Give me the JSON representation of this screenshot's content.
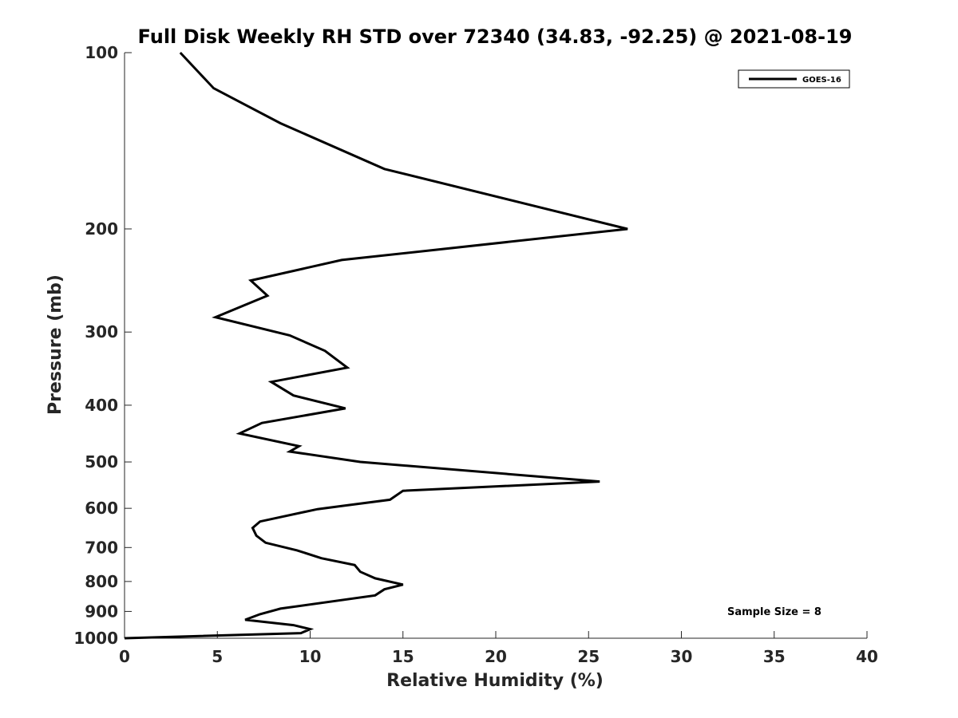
{
  "chart_data": {
    "type": "line",
    "title": "Full Disk Weekly RH STD over 72340 (34.83, -92.25) @ 2021-08-19",
    "xlabel": "Relative Humidity (%)",
    "ylabel": "Pressure (mb)",
    "xlim": [
      0,
      40
    ],
    "ylim": [
      100,
      1000
    ],
    "y_scale": "log",
    "y_reversed": true,
    "x_ticks": [
      "0",
      "5",
      "10",
      "15",
      "20",
      "25",
      "30",
      "35",
      "40"
    ],
    "y_ticks": [
      "100",
      "200",
      "300",
      "400",
      "500",
      "600",
      "700",
      "800",
      "900",
      "1000"
    ],
    "legend": {
      "position": "top-right",
      "entries": [
        "GOES-16"
      ]
    },
    "annotation": "Sample Size = 8",
    "series": [
      {
        "name": "GOES-16",
        "color": "#000000",
        "x": [
          3.0,
          4.8,
          8.4,
          14.0,
          27.1,
          11.7,
          6.8,
          7.7,
          4.9,
          8.9,
          10.8,
          12.0,
          7.9,
          9.1,
          11.9,
          7.4,
          6.2,
          9.4,
          8.9,
          12.7,
          25.6,
          15.0,
          14.3,
          10.4,
          7.3,
          6.9,
          7.1,
          7.6,
          9.3,
          10.6,
          12.4,
          12.7,
          13.5,
          15.0,
          14.0,
          13.5,
          8.4,
          7.3,
          6.5,
          9.1,
          10.0,
          9.5,
          0.0
        ],
        "y": [
          100,
          115,
          132,
          158,
          200,
          226,
          245,
          260,
          283,
          304,
          323,
          345,
          365,
          385,
          405,
          429,
          447,
          470,
          480,
          500,
          540,
          560,
          580,
          602,
          632,
          648,
          668,
          687,
          708,
          730,
          750,
          770,
          790,
          810,
          825,
          845,
          890,
          910,
          930,
          950,
          965,
          980,
          1000
        ]
      }
    ]
  }
}
